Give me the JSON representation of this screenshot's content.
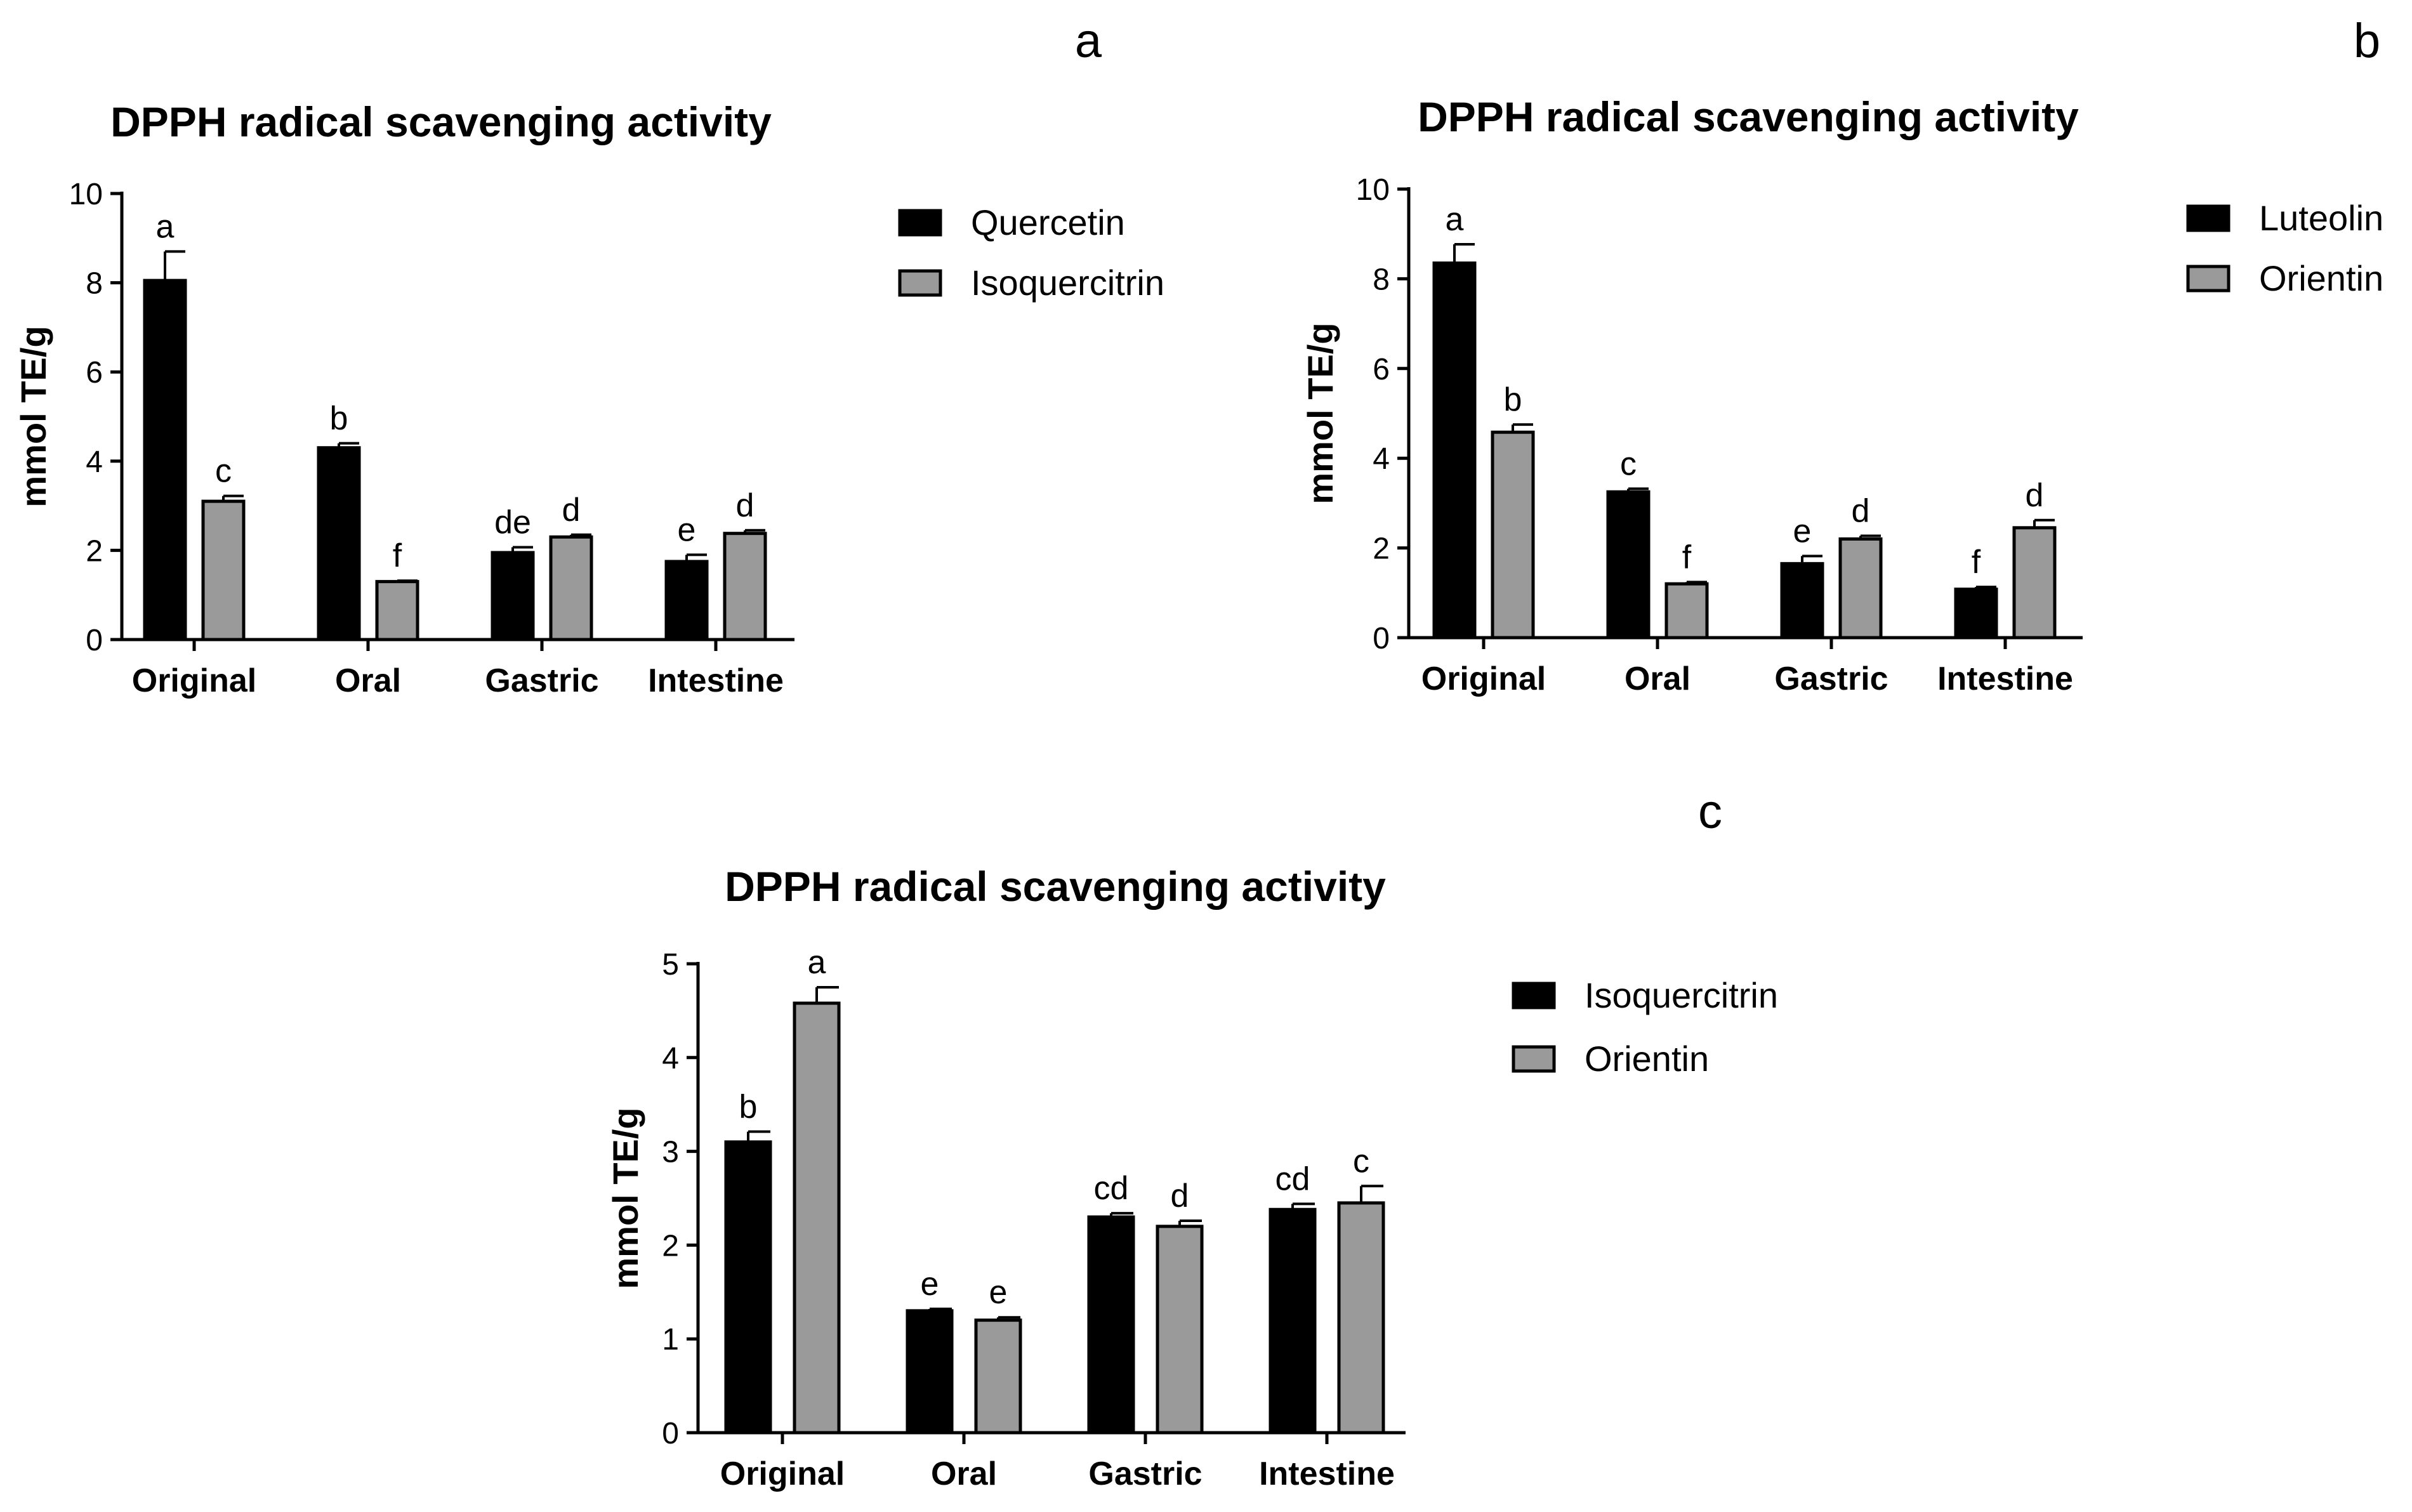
{
  "colors": {
    "series1": "#000000",
    "series2": "#9a9a9a",
    "axis": "#000000"
  },
  "chart_data": [
    {
      "panel": "a",
      "type": "bar",
      "title": "DPPH radical scavenging activity",
      "xlabel": "",
      "ylabel": "mmol TE/g",
      "ylim": [
        0,
        10
      ],
      "yticks": [
        0,
        2,
        4,
        6,
        8,
        10
      ],
      "legend_position": "right",
      "categories": [
        "Original",
        "Oral",
        "Gastric",
        "Intestine"
      ],
      "series": [
        {
          "name": "Quercetin",
          "values": [
            8.05,
            4.3,
            1.95,
            1.75
          ],
          "errors": [
            0.65,
            0.1,
            0.12,
            0.15
          ],
          "letters": [
            "a",
            "b",
            "de",
            "e"
          ]
        },
        {
          "name": "Isoquercitrin",
          "values": [
            3.1,
            1.3,
            2.3,
            2.38
          ],
          "errors": [
            0.12,
            0.02,
            0.05,
            0.07
          ],
          "letters": [
            "c",
            "f",
            "d",
            "d"
          ]
        }
      ]
    },
    {
      "panel": "b",
      "type": "bar",
      "title": "DPPH radical scavenging activity",
      "xlabel": "",
      "ylabel": "mmol TE/g",
      "ylim": [
        0,
        10
      ],
      "yticks": [
        0,
        2,
        4,
        6,
        8,
        10
      ],
      "legend_position": "right",
      "categories": [
        "Original",
        "Oral",
        "Gastric",
        "Intestine"
      ],
      "series": [
        {
          "name": "Luteolin",
          "values": [
            8.35,
            3.25,
            1.65,
            1.08
          ],
          "errors": [
            0.42,
            0.07,
            0.17,
            0.05
          ],
          "letters": [
            "a",
            "c",
            "e",
            "f"
          ]
        },
        {
          "name": "Orientin",
          "values": [
            4.58,
            1.2,
            2.2,
            2.45
          ],
          "errors": [
            0.17,
            0.04,
            0.07,
            0.17
          ],
          "letters": [
            "b",
            "f",
            "d",
            "d"
          ]
        }
      ]
    },
    {
      "panel": "c",
      "type": "bar",
      "title": "DPPH radical scavenging activity",
      "xlabel": "",
      "ylabel": "mmol TE/g",
      "ylim": [
        0,
        5
      ],
      "yticks": [
        0,
        1,
        2,
        3,
        4,
        5
      ],
      "legend_position": "right",
      "categories": [
        "Original",
        "Oral",
        "Gastric",
        "Intestine"
      ],
      "series": [
        {
          "name": "Isoquercitrin",
          "values": [
            3.1,
            1.3,
            2.3,
            2.38
          ],
          "errors": [
            0.11,
            0.02,
            0.04,
            0.06
          ],
          "letters": [
            "b",
            "e",
            "cd",
            "cd"
          ]
        },
        {
          "name": "Orientin",
          "values": [
            4.58,
            1.2,
            2.2,
            2.45
          ],
          "errors": [
            0.17,
            0.03,
            0.06,
            0.18
          ],
          "letters": [
            "a",
            "e",
            "d",
            "c"
          ]
        }
      ]
    }
  ]
}
